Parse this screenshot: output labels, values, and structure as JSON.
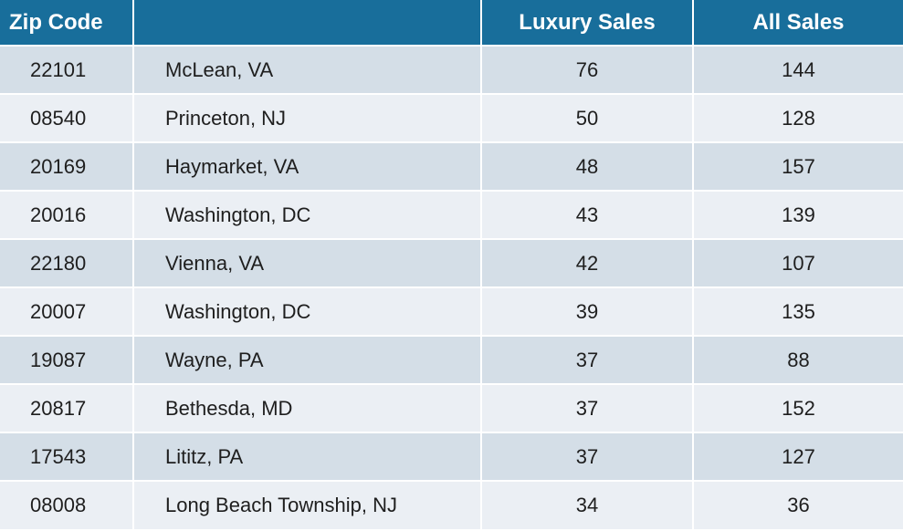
{
  "table": {
    "headers": {
      "zip": "Zip Code",
      "city": "",
      "luxury": "Luxury Sales",
      "all": "All Sales"
    },
    "rows": [
      {
        "zip": "22101",
        "city": "McLean, VA",
        "luxury": "76",
        "all": "144"
      },
      {
        "zip": "08540",
        "city": "Princeton, NJ",
        "luxury": "50",
        "all": "128"
      },
      {
        "zip": "20169",
        "city": "Haymarket, VA",
        "luxury": "48",
        "all": "157"
      },
      {
        "zip": "20016",
        "city": "Washington, DC",
        "luxury": "43",
        "all": "139"
      },
      {
        "zip": "22180",
        "city": "Vienna, VA",
        "luxury": "42",
        "all": "107"
      },
      {
        "zip": "20007",
        "city": "Washington, DC",
        "luxury": "39",
        "all": "135"
      },
      {
        "zip": "19087",
        "city": "Wayne, PA",
        "luxury": "37",
        "all": "88"
      },
      {
        "zip": "20817",
        "city": "Bethesda, MD",
        "luxury": "37",
        "all": "152"
      },
      {
        "zip": "17543",
        "city": "Lititz, PA",
        "luxury": "37",
        "all": "127"
      },
      {
        "zip": "08008",
        "city": "Long Beach Township, NJ",
        "luxury": "34",
        "all": "36"
      }
    ]
  },
  "colors": {
    "header_bg": "#186e9b",
    "row_odd_bg": "#d4dee7",
    "row_even_bg": "#ebeff4"
  }
}
